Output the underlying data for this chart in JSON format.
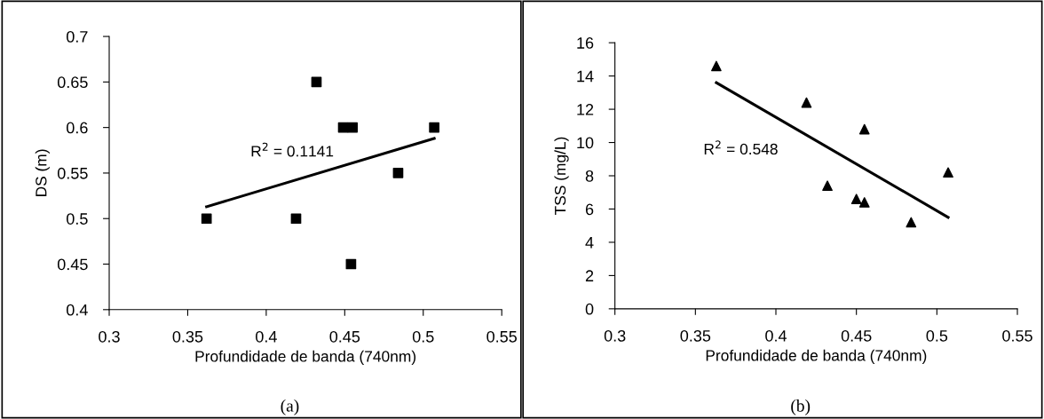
{
  "chart_data": [
    {
      "type": "scatter",
      "xlabel": "Profundidade de banda (740nm)",
      "ylabel": "DS (m)",
      "marker": "square",
      "grid": false,
      "legend": false,
      "xlim": [
        0.3,
        0.55
      ],
      "xticks": [
        0.3,
        0.35,
        0.4,
        0.45,
        0.5,
        0.55
      ],
      "ylim": [
        0.4,
        0.7
      ],
      "yticks": [
        0.4,
        0.45,
        0.5,
        0.55,
        0.6,
        0.65,
        0.7
      ],
      "series": [
        {
          "color": "#000000",
          "x": [
            0.362,
            0.419,
            0.432,
            0.449,
            0.455,
            0.454,
            0.484,
            0.507
          ],
          "values": [
            0.5,
            0.5,
            0.65,
            0.6,
            0.6,
            0.45,
            0.55,
            0.6
          ]
        },
        {
          "type": "line",
          "color": "#000000",
          "marker": "none",
          "x": [
            0.362,
            0.507
          ],
          "values": [
            0.513,
            0.588
          ]
        }
      ],
      "annotations": [
        "R$^{2}$ = 0.1141",
        "(a)"
      ]
    },
    {
      "type": "scatter",
      "xlabel": "Profundidade de banda (740nm)",
      "ylabel": "TSS (mg/L)",
      "marker": "triangle",
      "grid": false,
      "legend": false,
      "xlim": [
        0.3,
        0.55
      ],
      "xticks": [
        0.3,
        0.35,
        0.4,
        0.45,
        0.5,
        0.55
      ],
      "ylim": [
        0,
        16
      ],
      "yticks": [
        0,
        2,
        4,
        6,
        8,
        10,
        12,
        14,
        16
      ],
      "series": [
        {
          "color": "#000000",
          "x": [
            0.363,
            0.419,
            0.432,
            0.45,
            0.455,
            0.455,
            0.484,
            0.507
          ],
          "values": [
            14.6,
            12.4,
            7.4,
            6.6,
            10.8,
            6.4,
            5.2,
            8.2
          ]
        },
        {
          "type": "line",
          "color": "#000000",
          "marker": "none",
          "x": [
            0.363,
            0.507
          ],
          "values": [
            13.6,
            5.5
          ]
        }
      ],
      "annotations": [
        "R$^{2}$ = 0.548",
        "(b)"
      ]
    }
  ]
}
